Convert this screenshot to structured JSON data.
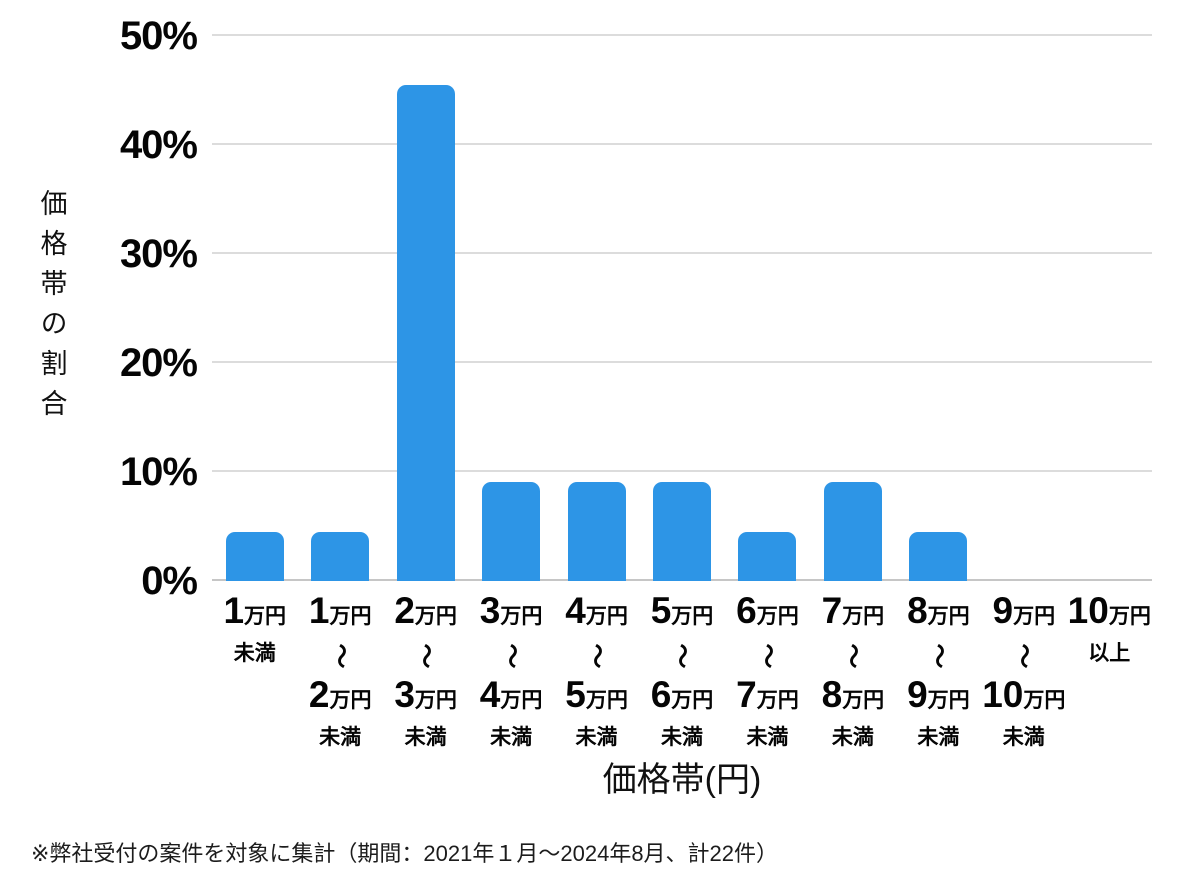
{
  "chart_data": {
    "type": "bar",
    "title": "",
    "xlabel": "価格帯(円)",
    "ylabel": "価格帯の割合",
    "ylim": [
      0,
      50
    ],
    "ytick_step": 10,
    "yticks": [
      "0%",
      "10%",
      "20%",
      "30%",
      "40%",
      "50%"
    ],
    "grid": "horizontal",
    "legend": "none",
    "bar_color": "#2d95e6",
    "categories": [
      {
        "num": "1",
        "unit": "万円",
        "tilde": "",
        "num2": "",
        "unit2": "",
        "suffix": "未満"
      },
      {
        "num": "1",
        "unit": "万円",
        "tilde": "〜",
        "num2": "2",
        "unit2": "万円",
        "suffix": "未満"
      },
      {
        "num": "2",
        "unit": "万円",
        "tilde": "〜",
        "num2": "3",
        "unit2": "万円",
        "suffix": "未満"
      },
      {
        "num": "3",
        "unit": "万円",
        "tilde": "〜",
        "num2": "4",
        "unit2": "万円",
        "suffix": "未満"
      },
      {
        "num": "4",
        "unit": "万円",
        "tilde": "〜",
        "num2": "5",
        "unit2": "万円",
        "suffix": "未満"
      },
      {
        "num": "5",
        "unit": "万円",
        "tilde": "〜",
        "num2": "6",
        "unit2": "万円",
        "suffix": "未満"
      },
      {
        "num": "6",
        "unit": "万円",
        "tilde": "〜",
        "num2": "7",
        "unit2": "万円",
        "suffix": "未満"
      },
      {
        "num": "7",
        "unit": "万円",
        "tilde": "〜",
        "num2": "8",
        "unit2": "万円",
        "suffix": "未満"
      },
      {
        "num": "8",
        "unit": "万円",
        "tilde": "〜",
        "num2": "9",
        "unit2": "万円",
        "suffix": "未満"
      },
      {
        "num": "9",
        "unit": "万円",
        "tilde": "〜",
        "num2": "10",
        "unit2": "万円",
        "suffix": "未満"
      },
      {
        "num": "10",
        "unit": "万円",
        "tilde": "",
        "num2": "",
        "unit2": "",
        "suffix": "以上"
      }
    ],
    "values": [
      4.5,
      4.5,
      45.5,
      9.1,
      9.1,
      9.1,
      4.5,
      9.1,
      4.5,
      0,
      0
    ]
  },
  "footnote": "※弊社受付の案件を対象に集計（期間：2021年１月～2024年8月、計22件）"
}
